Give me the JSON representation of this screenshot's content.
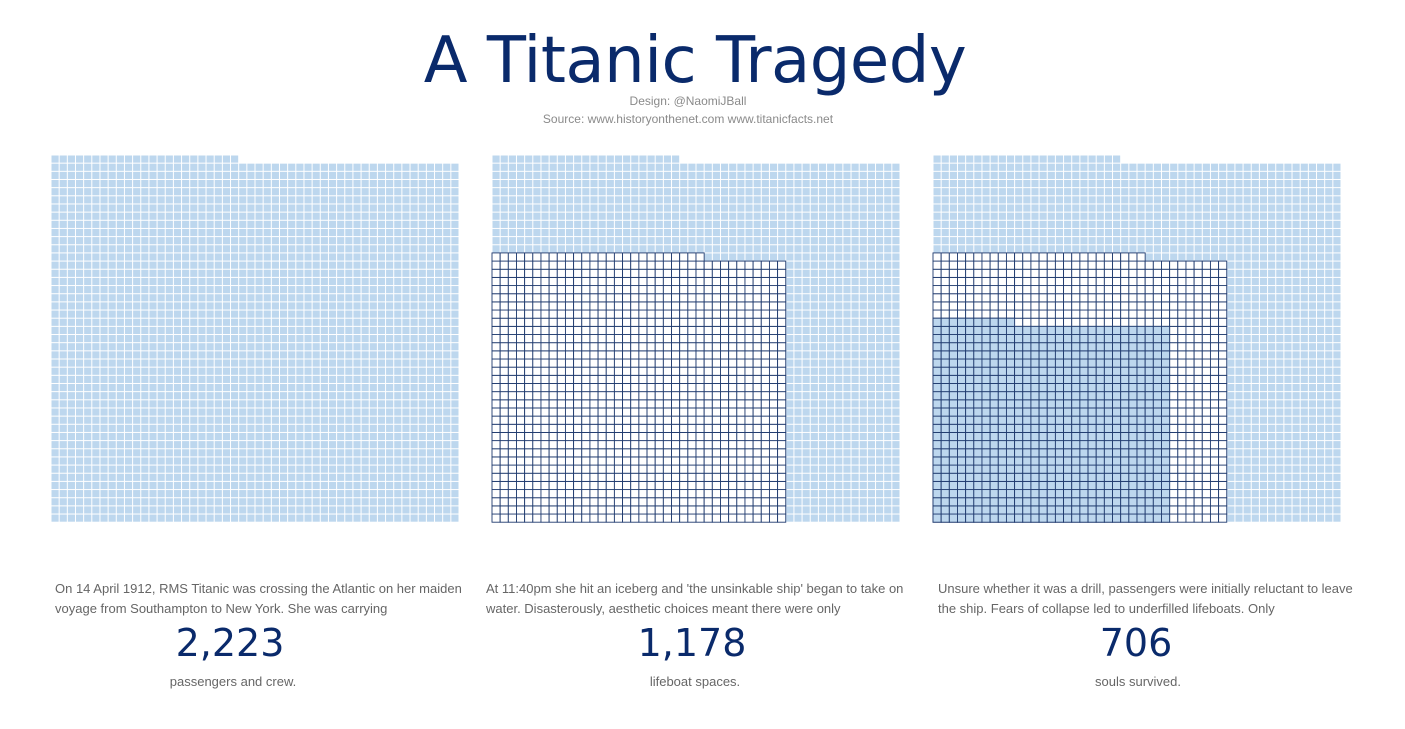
{
  "title": "A Titanic Tragedy",
  "design_credit": "Design: @NaomiJBall",
  "source_credit": "Source: www.historyonthenet.com www.titanicfacts.net",
  "colors": {
    "title": "#0a2a6b",
    "cell_fill": "#bdd7ee",
    "cell_border": "#ffffff",
    "outline_cell_border": "#1f3a6e",
    "text": "#666666"
  },
  "panels": [
    {
      "caption": "On 14 April 1912, RMS Titanic was crossing the Atlantic on her maiden voyage from Southampton to New York. She was carrying",
      "number": "2,223",
      "label": "passengers and crew."
    },
    {
      "caption": "At 11:40pm she hit an iceberg and 'the unsinkable ship' began to take on water. Disasterously, aesthetic choices meant there were only",
      "number": "1,178",
      "label": "lifeboat spaces."
    },
    {
      "caption": "Unsure whether it was a drill, passengers were initially reluctant to leave the ship. Fears of collapse led to underfilled lifeboats. Only",
      "number": "706",
      "label": "souls survived."
    }
  ],
  "chart_data": {
    "type": "waffle",
    "unit": "1 square = 1 person",
    "grid_columns": 50,
    "values": {
      "passengers_and_crew": 2223,
      "lifeboat_spaces": 1178,
      "survived": 706
    },
    "panels": [
      {
        "shaded": "passengers_and_crew"
      },
      {
        "shaded": "passengers_and_crew",
        "outlined": "lifeboat_spaces"
      },
      {
        "shaded": "passengers_and_crew",
        "outlined": "lifeboat_spaces",
        "filled": "survived"
      }
    ]
  }
}
